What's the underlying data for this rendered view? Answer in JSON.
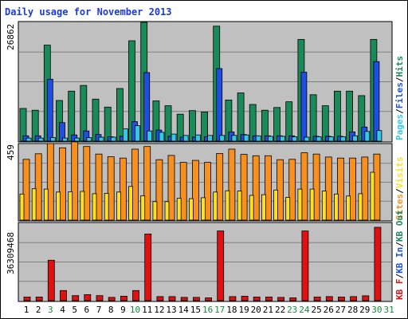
{
  "title": "Daily usage for November 2013",
  "colors": {
    "hits": "#1a8a5a",
    "files": "#1f4fe0",
    "pages": "#33c9e6",
    "visits": "#ffe020",
    "sites": "#f7901e",
    "kb_f": "#e01010",
    "kb_in": "#1f4fe0",
    "kb_out": "#1a8a5a",
    "panel_bg": "#c0c0c0",
    "weekend_day": "#1a8a3a"
  },
  "chart_data": [
    {
      "type": "bar",
      "panel": "hits",
      "ymax_label": "26862",
      "ylim": [
        0,
        26862
      ],
      "legend": [
        "Pages",
        "Files",
        "Hits"
      ],
      "categories": [
        "1",
        "2",
        "3",
        "4",
        "5",
        "6",
        "7",
        "8",
        "9",
        "10",
        "11",
        "12",
        "13",
        "14",
        "15",
        "16",
        "17",
        "18",
        "19",
        "20",
        "21",
        "22",
        "23",
        "24",
        "25",
        "26",
        "27",
        "28",
        "29",
        "30",
        "31"
      ],
      "series": [
        {
          "name": "Hits",
          "values": [
            7400,
            7000,
            21700,
            9200,
            11300,
            12600,
            9500,
            7700,
            11900,
            22700,
            26862,
            9100,
            8000,
            6100,
            6900,
            6600,
            26000,
            9300,
            10900,
            8300,
            7000,
            7600,
            8900,
            23000,
            10500,
            8000,
            11300,
            11300,
            10300,
            23000,
            0
          ]
        },
        {
          "name": "Files",
          "values": [
            1200,
            1200,
            14000,
            4200,
            1400,
            2300,
            1500,
            1000,
            1100,
            4400,
            15500,
            2500,
            1100,
            900,
            900,
            1000,
            16400,
            2100,
            1500,
            1200,
            1200,
            1200,
            1200,
            15600,
            1100,
            1100,
            1100,
            2100,
            3200,
            18000,
            0
          ]
        },
        {
          "name": "Pages",
          "values": [
            700,
            700,
            800,
            700,
            700,
            800,
            900,
            900,
            2800,
            3500,
            2300,
            2000,
            1600,
            1300,
            1400,
            1300,
            1300,
            1300,
            1400,
            1200,
            1100,
            1100,
            1000,
            900,
            1000,
            1000,
            1000,
            1200,
            2200,
            2400,
            0
          ]
        }
      ]
    },
    {
      "type": "bar",
      "panel": "visits",
      "ymax_label": "459",
      "ylim": [
        0,
        459
      ],
      "legend": [
        "Visits",
        "Sites"
      ],
      "categories": [
        "1",
        "2",
        "3",
        "4",
        "5",
        "6",
        "7",
        "8",
        "9",
        "10",
        "11",
        "12",
        "13",
        "14",
        "15",
        "16",
        "17",
        "18",
        "19",
        "20",
        "21",
        "22",
        "23",
        "24",
        "25",
        "26",
        "27",
        "28",
        "29",
        "30",
        "31"
      ],
      "series": [
        {
          "name": "Sites",
          "values": [
            368,
            402,
            464,
            438,
            474,
            446,
            400,
            384,
            376,
            430,
            446,
            366,
            392,
            350,
            362,
            350,
            404,
            430,
            398,
            390,
            390,
            366,
            368,
            408,
            400,
            382,
            376,
            376,
            382,
            400,
            0
          ]
        },
        {
          "name": "Visits",
          "values": [
            158,
            190,
            188,
            170,
            172,
            174,
            160,
            162,
            170,
            204,
            148,
            112,
            112,
            132,
            130,
            136,
            170,
            178,
            176,
            150,
            154,
            182,
            138,
            188,
            188,
            176,
            158,
            146,
            160,
            290,
            0
          ]
        }
      ]
    },
    {
      "type": "bar",
      "panel": "kbf",
      "ymax_label": "36309468",
      "ylim": [
        0,
        36309468
      ],
      "legend": [
        "KB F",
        "KB In",
        "KB Out"
      ],
      "categories": [
        "1",
        "2",
        "3",
        "4",
        "5",
        "6",
        "7",
        "8",
        "9",
        "10",
        "11",
        "12",
        "13",
        "14",
        "15",
        "16",
        "17",
        "18",
        "19",
        "20",
        "21",
        "22",
        "23",
        "24",
        "25",
        "26",
        "27",
        "28",
        "29",
        "30",
        "31"
      ],
      "series": [
        {
          "name": "KB F",
          "values": [
            1800000,
            1800000,
            20000000,
            5000000,
            2500000,
            3000000,
            2500000,
            1600000,
            2200000,
            5000000,
            33000000,
            2000000,
            2000000,
            1600000,
            1600000,
            1400000,
            34500000,
            2000000,
            2200000,
            1800000,
            1800000,
            1600000,
            1400000,
            34500000,
            1800000,
            2000000,
            1800000,
            2000000,
            2400000,
            36309468,
            0
          ]
        }
      ]
    }
  ]
}
